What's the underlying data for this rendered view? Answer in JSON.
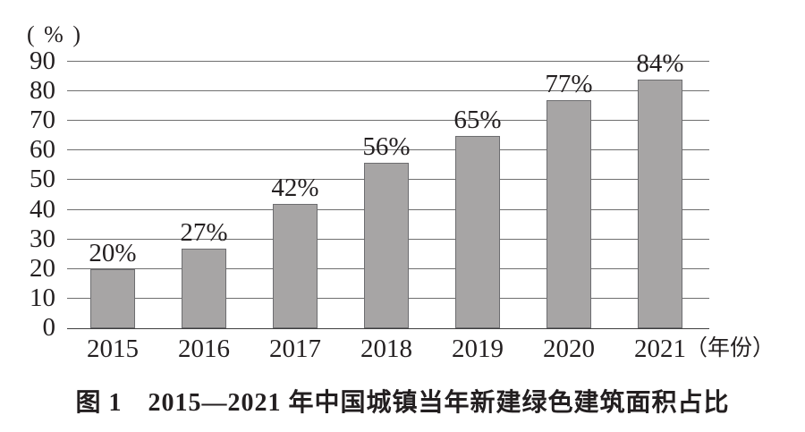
{
  "figure": {
    "caption": "图 1　2015—2021 年中国城镇当年新建绿色建筑面积占比"
  },
  "chart_data": {
    "type": "bar",
    "title": "图 1　2015—2021 年中国城镇当年新建绿色建筑面积占比",
    "ylabel": "( % )",
    "xlabel": "（年份）",
    "categories": [
      "2015",
      "2016",
      "2017",
      "2018",
      "2019",
      "2020",
      "2021"
    ],
    "values": [
      20,
      27,
      42,
      56,
      65,
      77,
      84
    ],
    "data_labels": [
      "20%",
      "27%",
      "42%",
      "56%",
      "65%",
      "77%",
      "84%"
    ],
    "yticks": [
      0,
      10,
      20,
      30,
      40,
      50,
      60,
      70,
      80,
      90
    ],
    "ylim": [
      0,
      90
    ],
    "grid": "horizontal",
    "legend": "none",
    "bar_color": "#a7a5a5",
    "bar_border_color": "#6d6d70",
    "gridline_color": "#6f6f6f",
    "axis_color": "#3f3f3f",
    "text_color": "#231f20"
  }
}
